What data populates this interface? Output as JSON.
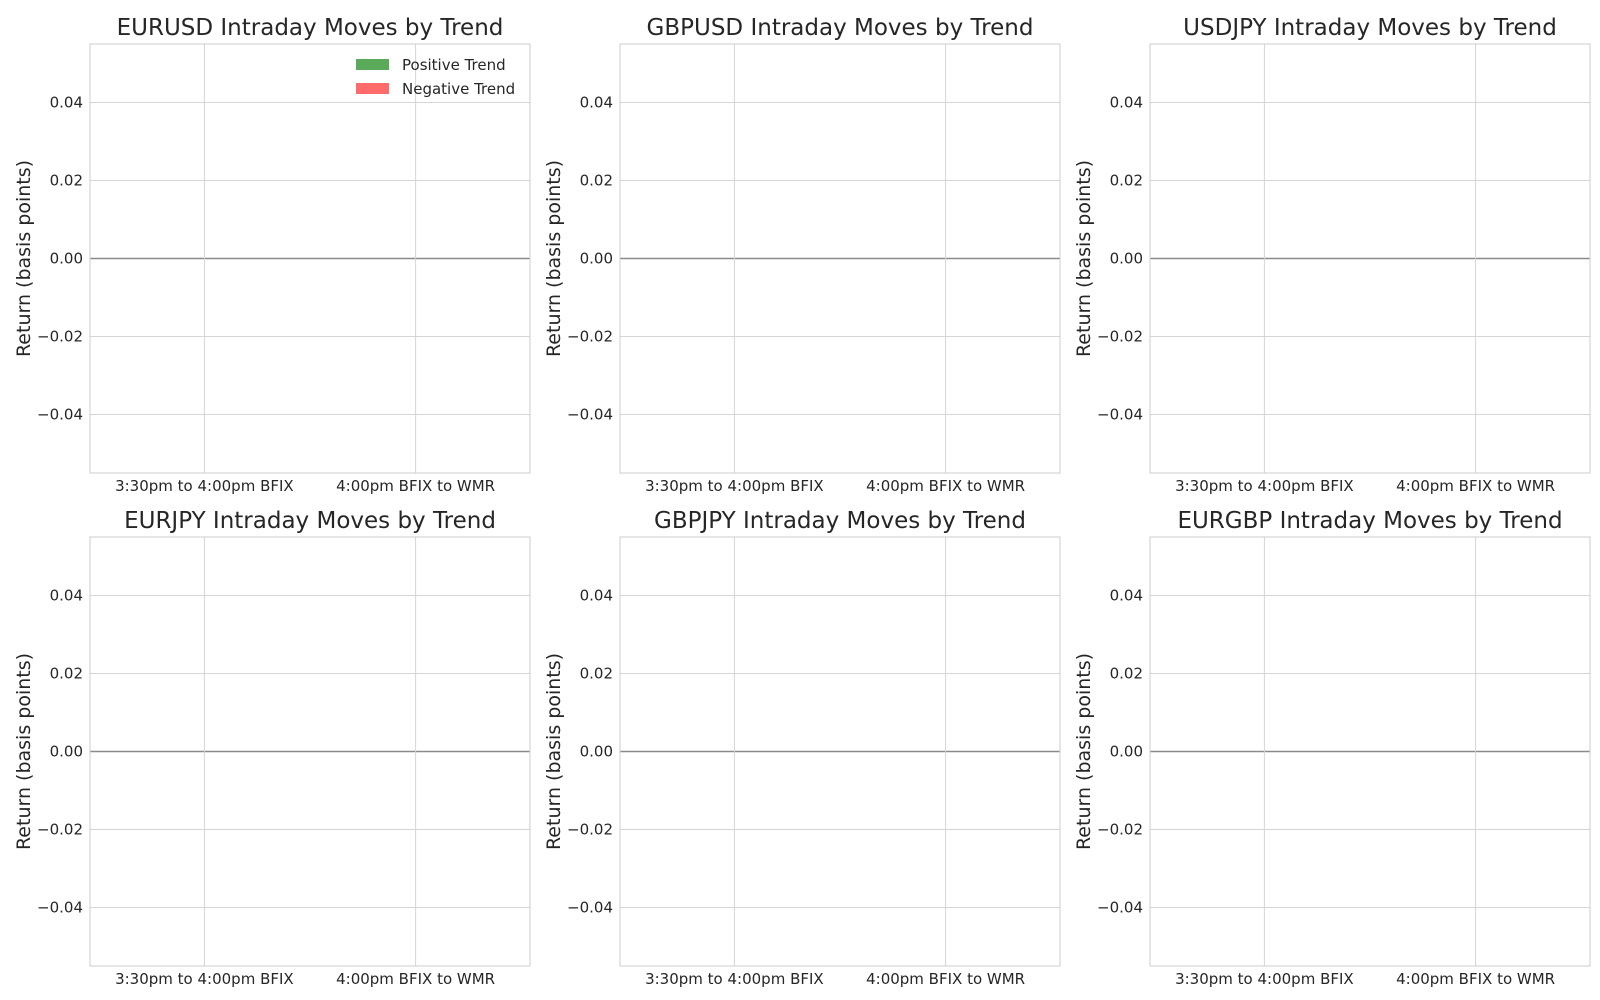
{
  "chart_data": [
    {
      "type": "bar",
      "title": "EURUSD Intraday Moves by Trend",
      "xlabel": "",
      "ylabel": "Return (basis points)",
      "categories": [
        "3:30pm to 4:00pm BFIX",
        "4:00pm BFIX to WMR"
      ],
      "series": [
        {
          "name": "Positive Trend",
          "values": [
            0,
            0
          ],
          "color": "#5aaa5a"
        },
        {
          "name": "Negative Trend",
          "values": [
            0,
            0
          ],
          "color": "#ff6b6b"
        }
      ],
      "ylim": [
        -0.055,
        0.055
      ],
      "yticks": [
        -0.04,
        -0.02,
        0.0,
        0.02,
        0.04
      ],
      "ytick_labels": [
        "−0.04",
        "−0.02",
        "0.00",
        "0.02",
        "0.04"
      ],
      "grid": true,
      "legend": "top-right"
    },
    {
      "type": "bar",
      "title": "GBPUSD Intraday Moves by Trend",
      "xlabel": "",
      "ylabel": "Return (basis points)",
      "categories": [
        "3:30pm to 4:00pm BFIX",
        "4:00pm BFIX to WMR"
      ],
      "series": [
        {
          "values": [
            0,
            0
          ],
          "color": "#5aaa5a"
        },
        {
          "values": [
            0,
            0
          ],
          "color": "#ff6b6b"
        }
      ],
      "ylim": [
        -0.055,
        0.055
      ],
      "yticks": [
        -0.04,
        -0.02,
        0.0,
        0.02,
        0.04
      ],
      "ytick_labels": [
        "−0.04",
        "−0.02",
        "0.00",
        "0.02",
        "0.04"
      ],
      "grid": true
    },
    {
      "type": "bar",
      "title": "USDJPY Intraday Moves by Trend",
      "xlabel": "",
      "ylabel": "Return (basis points)",
      "categories": [
        "3:30pm to 4:00pm BFIX",
        "4:00pm BFIX to WMR"
      ],
      "series": [
        {
          "values": [
            0,
            0
          ],
          "color": "#5aaa5a"
        },
        {
          "values": [
            0,
            0
          ],
          "color": "#ff6b6b"
        }
      ],
      "ylim": [
        -0.055,
        0.055
      ],
      "yticks": [
        -0.04,
        -0.02,
        0.0,
        0.02,
        0.04
      ],
      "ytick_labels": [
        "−0.04",
        "−0.02",
        "0.00",
        "0.02",
        "0.04"
      ],
      "grid": true
    },
    {
      "type": "bar",
      "title": "EURJPY Intraday Moves by Trend",
      "xlabel": "",
      "ylabel": "Return (basis points)",
      "categories": [
        "3:30pm to 4:00pm BFIX",
        "4:00pm BFIX to WMR"
      ],
      "series": [
        {
          "values": [
            0,
            0
          ],
          "color": "#5aaa5a"
        },
        {
          "values": [
            0,
            0
          ],
          "color": "#ff6b6b"
        }
      ],
      "ylim": [
        -0.055,
        0.055
      ],
      "yticks": [
        -0.04,
        -0.02,
        0.0,
        0.02,
        0.04
      ],
      "ytick_labels": [
        "−0.04",
        "−0.02",
        "0.00",
        "0.02",
        "0.04"
      ],
      "grid": true
    },
    {
      "type": "bar",
      "title": "GBPJPY Intraday Moves by Trend",
      "xlabel": "",
      "ylabel": "Return (basis points)",
      "categories": [
        "3:30pm to 4:00pm BFIX",
        "4:00pm BFIX to WMR"
      ],
      "series": [
        {
          "values": [
            0,
            0
          ],
          "color": "#5aaa5a"
        },
        {
          "values": [
            0,
            0
          ],
          "color": "#ff6b6b"
        }
      ],
      "ylim": [
        -0.055,
        0.055
      ],
      "yticks": [
        -0.04,
        -0.02,
        0.0,
        0.02,
        0.04
      ],
      "ytick_labels": [
        "−0.04",
        "−0.02",
        "0.00",
        "0.02",
        "0.04"
      ],
      "grid": true
    },
    {
      "type": "bar",
      "title": "EURGBP Intraday Moves by Trend",
      "xlabel": "",
      "ylabel": "Return (basis points)",
      "categories": [
        "3:30pm to 4:00pm BFIX",
        "4:00pm BFIX to WMR"
      ],
      "series": [
        {
          "values": [
            0,
            0
          ],
          "color": "#5aaa5a"
        },
        {
          "values": [
            0,
            0
          ],
          "color": "#ff6b6b"
        }
      ],
      "ylim": [
        -0.055,
        0.055
      ],
      "yticks": [
        -0.04,
        -0.02,
        0.0,
        0.02,
        0.04
      ],
      "ytick_labels": [
        "−0.04",
        "−0.02",
        "0.00",
        "0.02",
        "0.04"
      ],
      "grid": true
    }
  ]
}
